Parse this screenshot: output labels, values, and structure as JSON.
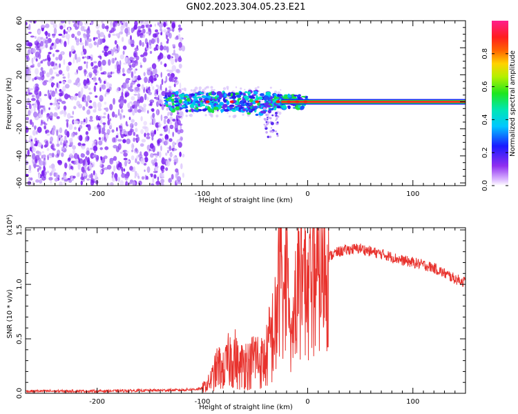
{
  "title": "GN02.2023.304.05.23.E21",
  "colors": {
    "line": "#e8322d",
    "noise": "#7a1ff0",
    "axis": "#000000"
  },
  "chart_data": [
    {
      "type": "heatmap",
      "xlabel": "Height of straight line (km)",
      "ylabel": "Frequency (Hz)",
      "xlim": [
        -268,
        150
      ],
      "ylim": [
        -62,
        60
      ],
      "xticks": [
        "-200",
        "-100",
        "0",
        "100"
      ],
      "xtick_values": [
        -200,
        -100,
        0,
        100
      ],
      "yticks": [
        "60",
        "40",
        "20",
        "0",
        "-20",
        "-40",
        "-60"
      ],
      "ytick_values": [
        60,
        40,
        20,
        0,
        -20,
        -40,
        -60
      ],
      "colorbar": {
        "label": "Normalized spectral amplitude",
        "range": [
          0,
          1
        ],
        "ticks": [
          "0.0",
          "0.2",
          "0.4",
          "0.6",
          "0.8"
        ],
        "tick_values": [
          0.0,
          0.2,
          0.4,
          0.6,
          0.8
        ],
        "colormap": "rainbow (white-purple-blue-cyan-green-yellow-red-magenta)"
      },
      "features": {
        "noise_region_x": [
          -268,
          -118
        ],
        "signal_band_start_x": -135,
        "signal_band_end_x": 150,
        "signal_center_frequency": 0
      },
      "grid": false
    },
    {
      "type": "line",
      "xlabel": "Height of straight line (km)",
      "ylabel": "SNR (10 * v/v)",
      "y_multiplier": "(x10⁴)",
      "xlim": [
        -268,
        150
      ],
      "ylim": [
        0,
        1.52
      ],
      "xticks": [
        "-200",
        "-100",
        "0",
        "100"
      ],
      "xtick_values": [
        -200,
        -100,
        0,
        100
      ],
      "yticks": [
        "0.0",
        "0.5",
        "1.0",
        "1.5"
      ],
      "ytick_values": [
        0.0,
        0.5,
        1.0,
        1.5
      ],
      "series": [
        {
          "color": "#e8322d",
          "x": [
            -268,
            -200,
            -120,
            -102,
            -95,
            -90,
            -85,
            -80,
            -75,
            -70,
            -65,
            -60,
            -55,
            -50,
            -45,
            -40,
            -35,
            -30,
            -28,
            -25,
            -22,
            -20,
            -18,
            -15,
            -12,
            -10,
            -8,
            -5,
            0,
            5,
            10,
            15,
            20,
            25,
            30,
            40,
            50,
            60,
            70,
            80,
            90,
            100,
            110,
            120,
            130,
            140,
            150
          ],
          "y": [
            0.02,
            0.02,
            0.03,
            0.04,
            0.08,
            0.15,
            0.25,
            0.2,
            0.3,
            0.35,
            0.22,
            0.3,
            0.25,
            0.35,
            0.28,
            0.3,
            0.5,
            0.6,
            0.95,
            1.25,
            0.8,
            1.3,
            0.6,
            0.5,
            0.8,
            0.85,
            1.0,
            1.1,
            0.95,
            1.0,
            1.1,
            1.2,
            1.25,
            1.28,
            1.3,
            1.32,
            1.33,
            1.3,
            1.28,
            1.25,
            1.22,
            1.2,
            1.18,
            1.15,
            1.1,
            1.05,
            1.02
          ]
        }
      ],
      "grid": false
    }
  ]
}
